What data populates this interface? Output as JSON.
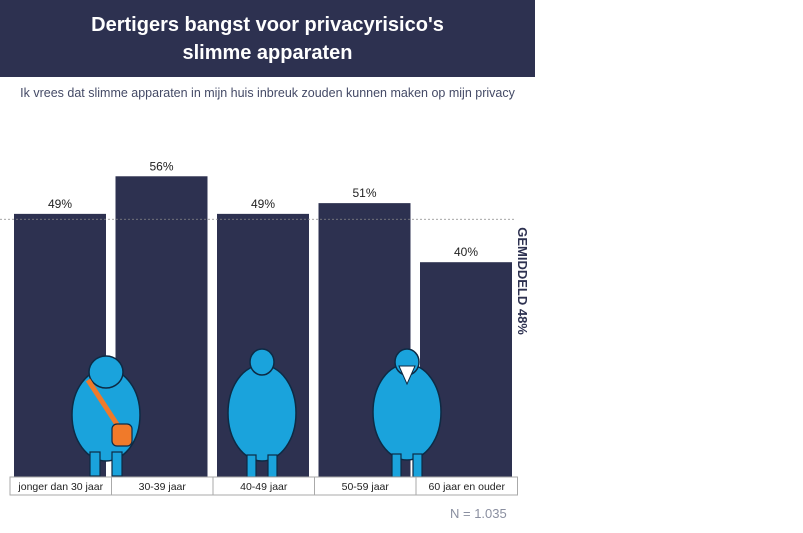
{
  "title": {
    "line1": "Dertigers bangst voor privacyrisico's",
    "line2": "slimme apparaten"
  },
  "subtitle": "Ik vrees dat slimme apparaten in mijn huis inbreuk zouden kunnen maken op mijn privacy",
  "sample_size": "N = 1.035",
  "colors": {
    "banner": "#2d3150",
    "bar": "#2d3150",
    "figure": "#1aa3dc",
    "bag": "#f07a2a"
  },
  "chart_data": {
    "type": "bar",
    "title": "Dertigers bangst voor privacyrisico's slimme apparaten",
    "categories": [
      "jonger dan 30 jaar",
      "30-39 jaar",
      "40-49 jaar",
      "50-59 jaar",
      "60 jaar en ouder"
    ],
    "values": [
      49,
      56,
      49,
      51,
      40
    ],
    "value_labels": [
      "49%",
      "56%",
      "49%",
      "51%",
      "40%"
    ],
    "unit": "%",
    "ylim": [
      0,
      100
    ],
    "grid": false,
    "reference_line": {
      "value": 48,
      "label": "GEMIDDELD 48%"
    }
  }
}
